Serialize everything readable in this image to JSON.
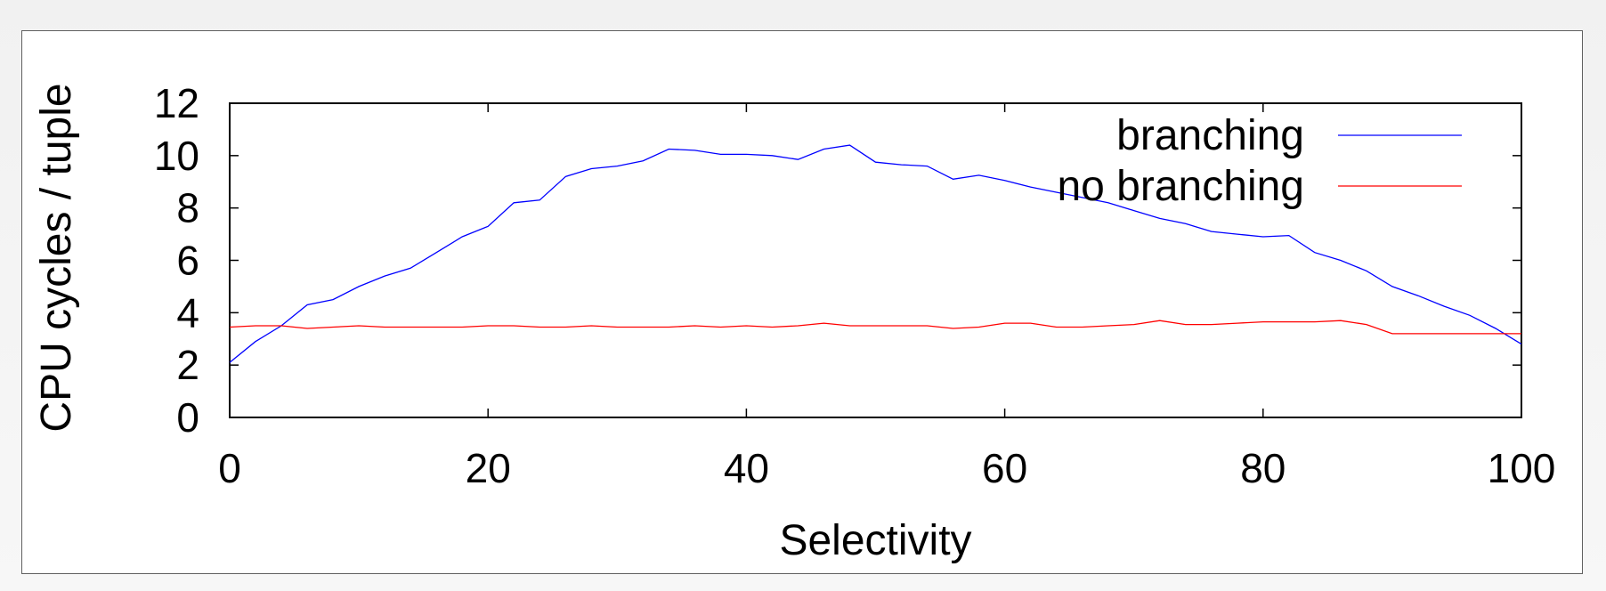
{
  "chart_data": {
    "type": "line",
    "title": "",
    "xlabel": "Selectivity",
    "ylabel": "CPU cycles / tuple",
    "xlim": [
      0,
      100
    ],
    "ylim": [
      0,
      12
    ],
    "xticks": [
      0,
      20,
      40,
      60,
      80,
      100
    ],
    "yticks": [
      0,
      2,
      4,
      6,
      8,
      10,
      12
    ],
    "grid": false,
    "legend_position": "top-right",
    "x": [
      0,
      2,
      4,
      6,
      8,
      10,
      12,
      14,
      16,
      18,
      20,
      22,
      24,
      26,
      28,
      30,
      32,
      34,
      36,
      38,
      40,
      42,
      44,
      46,
      48,
      50,
      52,
      54,
      56,
      58,
      60,
      62,
      64,
      66,
      68,
      70,
      72,
      74,
      76,
      78,
      80,
      82,
      84,
      86,
      88,
      90,
      92,
      94,
      96,
      98,
      100
    ],
    "series": [
      {
        "name": "branching",
        "color": "#0000ff",
        "values": [
          2.1,
          2.9,
          3.5,
          4.3,
          4.5,
          5.0,
          5.4,
          5.7,
          6.3,
          6.9,
          7.3,
          8.2,
          8.3,
          9.2,
          9.5,
          9.6,
          9.8,
          10.25,
          10.2,
          10.05,
          10.05,
          10.0,
          9.85,
          10.25,
          10.4,
          9.75,
          9.65,
          9.6,
          9.1,
          9.25,
          9.05,
          8.8,
          8.6,
          8.4,
          8.2,
          7.9,
          7.6,
          7.4,
          7.1,
          7.0,
          6.9,
          6.95,
          6.3,
          6.0,
          5.6,
          5.0,
          4.65,
          4.25,
          3.9,
          3.4,
          2.8
        ]
      },
      {
        "name": "no branching",
        "color": "#ff0000",
        "values": [
          3.45,
          3.5,
          3.5,
          3.4,
          3.45,
          3.5,
          3.45,
          3.45,
          3.45,
          3.45,
          3.5,
          3.5,
          3.45,
          3.45,
          3.5,
          3.45,
          3.45,
          3.45,
          3.5,
          3.45,
          3.5,
          3.45,
          3.5,
          3.6,
          3.5,
          3.5,
          3.5,
          3.5,
          3.4,
          3.45,
          3.6,
          3.6,
          3.45,
          3.45,
          3.5,
          3.55,
          3.7,
          3.55,
          3.55,
          3.6,
          3.65,
          3.65,
          3.65,
          3.7,
          3.55,
          3.2,
          3.2,
          3.2,
          3.2,
          3.2,
          3.2
        ]
      }
    ]
  }
}
